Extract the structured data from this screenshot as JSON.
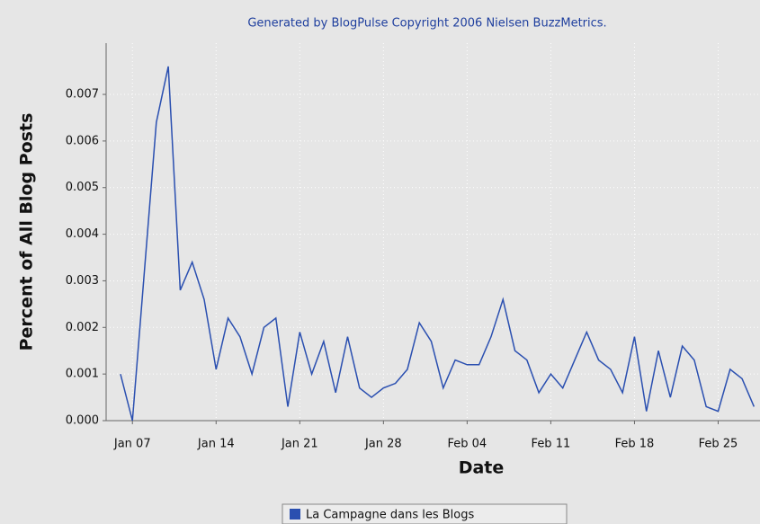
{
  "chart_data": {
    "type": "line",
    "title": "Generated by BlogPulse Copyright 2006 Nielsen BuzzMetrics.",
    "xlabel": "Date",
    "ylabel": "Percent of All Blog Posts",
    "x": [
      6,
      7,
      8,
      9,
      10,
      11,
      12,
      13,
      14,
      15,
      16,
      17,
      18,
      19,
      20,
      21,
      22,
      23,
      24,
      25,
      26,
      27,
      28,
      29,
      30,
      31,
      32,
      33,
      34,
      35,
      36,
      37,
      38,
      39,
      40,
      41,
      42,
      43,
      44,
      45,
      46,
      47,
      48,
      49,
      50,
      51,
      52,
      53,
      54,
      55,
      56,
      57,
      58,
      59
    ],
    "series": [
      {
        "name": "La Campagne dans les Blogs",
        "color": "#2a4fb0",
        "values": [
          0.001,
          0.0,
          0.0032,
          0.0064,
          0.0076,
          0.0028,
          0.0034,
          0.0026,
          0.0011,
          0.0022,
          0.0018,
          0.001,
          0.002,
          0.0022,
          0.0003,
          0.0019,
          0.001,
          0.0017,
          0.0006,
          0.0018,
          0.0007,
          0.0005,
          0.0007,
          0.0008,
          0.0011,
          0.0021,
          0.0017,
          0.0007,
          0.0013,
          0.0012,
          0.0012,
          0.0018,
          0.0026,
          0.0015,
          0.0013,
          0.0006,
          0.001,
          0.0007,
          0.0013,
          0.0019,
          0.0013,
          0.0011,
          0.0006,
          0.0018,
          0.0002,
          0.0015,
          0.0005,
          0.0016,
          0.0013,
          0.0003,
          0.0002,
          0.0011,
          0.0009,
          0.0003
        ]
      }
    ],
    "xlim": [
      4.8,
      59.5
    ],
    "xticks": [
      {
        "value": 7,
        "label": "Jan 07"
      },
      {
        "value": 14,
        "label": "Jan 14"
      },
      {
        "value": 21,
        "label": "Jan 21"
      },
      {
        "value": 28,
        "label": "Jan 28"
      },
      {
        "value": 35,
        "label": "Feb 04"
      },
      {
        "value": 42,
        "label": "Feb 11"
      },
      {
        "value": 49,
        "label": "Feb 18"
      },
      {
        "value": 56,
        "label": "Feb 25"
      }
    ],
    "ylim": [
      0,
      0.0081
    ],
    "yticks": [
      {
        "value": 0,
        "label": "0.000"
      },
      {
        "value": 0.001,
        "label": "0.001"
      },
      {
        "value": 0.002,
        "label": "0.002"
      },
      {
        "value": 0.003,
        "label": "0.003"
      },
      {
        "value": 0.004,
        "label": "0.004"
      },
      {
        "value": 0.005,
        "label": "0.005"
      },
      {
        "value": 0.006,
        "label": "0.006"
      },
      {
        "value": 0.007,
        "label": "0.007"
      }
    ],
    "grid": true
  }
}
